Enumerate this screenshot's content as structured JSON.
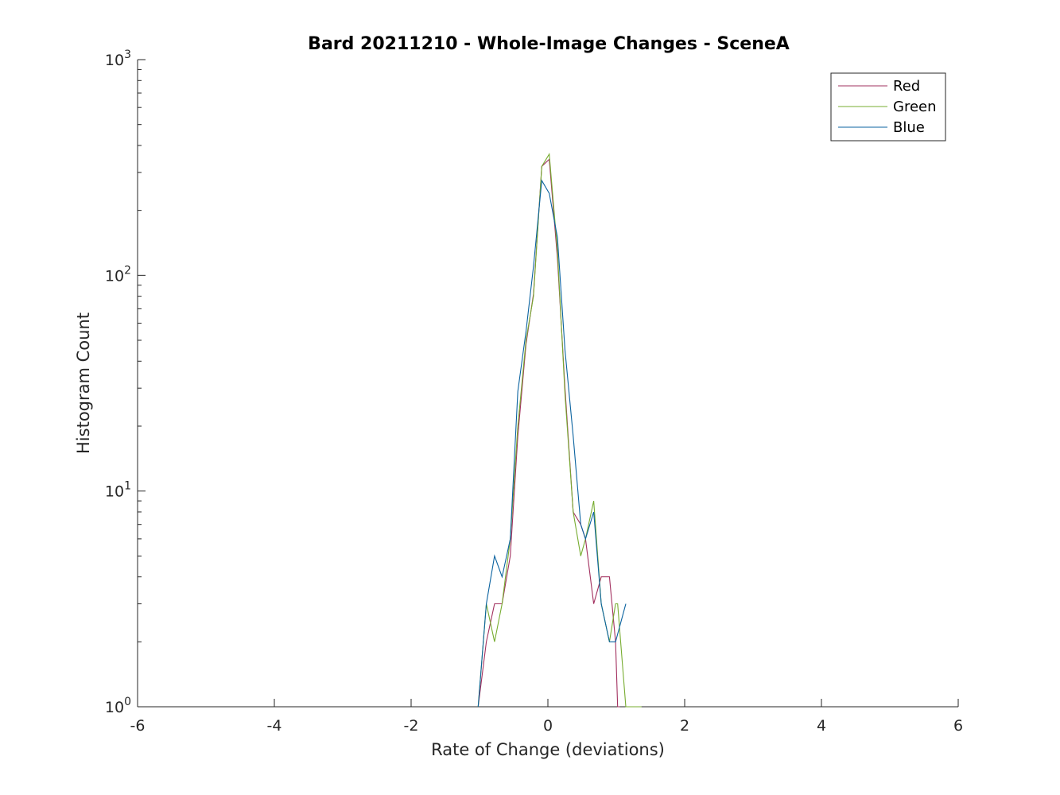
{
  "chart_data": {
    "type": "line",
    "title": "Bard 20211210 - Whole-Image Changes - SceneA",
    "xlabel": "Rate of Change (deviations)",
    "ylabel": "Histogram Count",
    "xlim": [
      -6,
      6
    ],
    "ylim": [
      1,
      1000
    ],
    "yscale": "log",
    "xticks": [
      -6,
      -4,
      -2,
      0,
      2,
      4,
      6
    ],
    "xtick_labels": [
      "-6",
      "-4",
      "-2",
      "0",
      "2",
      "4",
      "6"
    ],
    "yticks": [
      1,
      10,
      100,
      1000
    ],
    "ytick_labels": [
      {
        "base": "10",
        "exp": "0"
      },
      {
        "base": "10",
        "exp": "1"
      },
      {
        "base": "10",
        "exp": "2"
      },
      {
        "base": "10",
        "exp": "3"
      }
    ],
    "grid": false,
    "legend": "top-right",
    "series": [
      {
        "name": "Red",
        "color": "#a2305f",
        "x": [
          -1.02,
          -0.9,
          -0.78,
          -0.67,
          -0.55,
          -0.44,
          -0.32,
          -0.21,
          -0.09,
          0.02,
          0.14,
          0.25,
          0.37,
          0.48,
          0.55,
          0.67,
          0.78,
          0.9,
          0.99,
          1.02,
          1.05
        ],
        "y": [
          1,
          2,
          3,
          3,
          5,
          18,
          48,
          82,
          320,
          345,
          120,
          30,
          8,
          7,
          6,
          3,
          4,
          4,
          2,
          1,
          1
        ]
      },
      {
        "name": "Green",
        "color": "#77ac30",
        "x": [
          -1.02,
          -0.9,
          -0.78,
          -0.67,
          -0.55,
          -0.44,
          -0.32,
          -0.21,
          -0.09,
          0.02,
          0.14,
          0.25,
          0.37,
          0.48,
          0.55,
          0.67,
          0.78,
          0.9,
          0.99,
          1.02,
          1.14,
          1.37
        ],
        "y": [
          1,
          3,
          2,
          3,
          6,
          20,
          50,
          80,
          320,
          365,
          130,
          28,
          8,
          5,
          6,
          9,
          3,
          2,
          3,
          3,
          1,
          1
        ]
      },
      {
        "name": "Blue",
        "color": "#0b63a0",
        "x": [
          -1.02,
          -0.9,
          -0.78,
          -0.67,
          -0.55,
          -0.44,
          -0.32,
          -0.21,
          -0.09,
          0.02,
          0.14,
          0.25,
          0.37,
          0.48,
          0.55,
          0.67,
          0.78,
          0.9,
          0.99,
          1.14
        ],
        "y": [
          1,
          3,
          5,
          4,
          6,
          29,
          55,
          110,
          275,
          240,
          150,
          45,
          18,
          7,
          6,
          8,
          3,
          2,
          2,
          3
        ]
      }
    ]
  }
}
